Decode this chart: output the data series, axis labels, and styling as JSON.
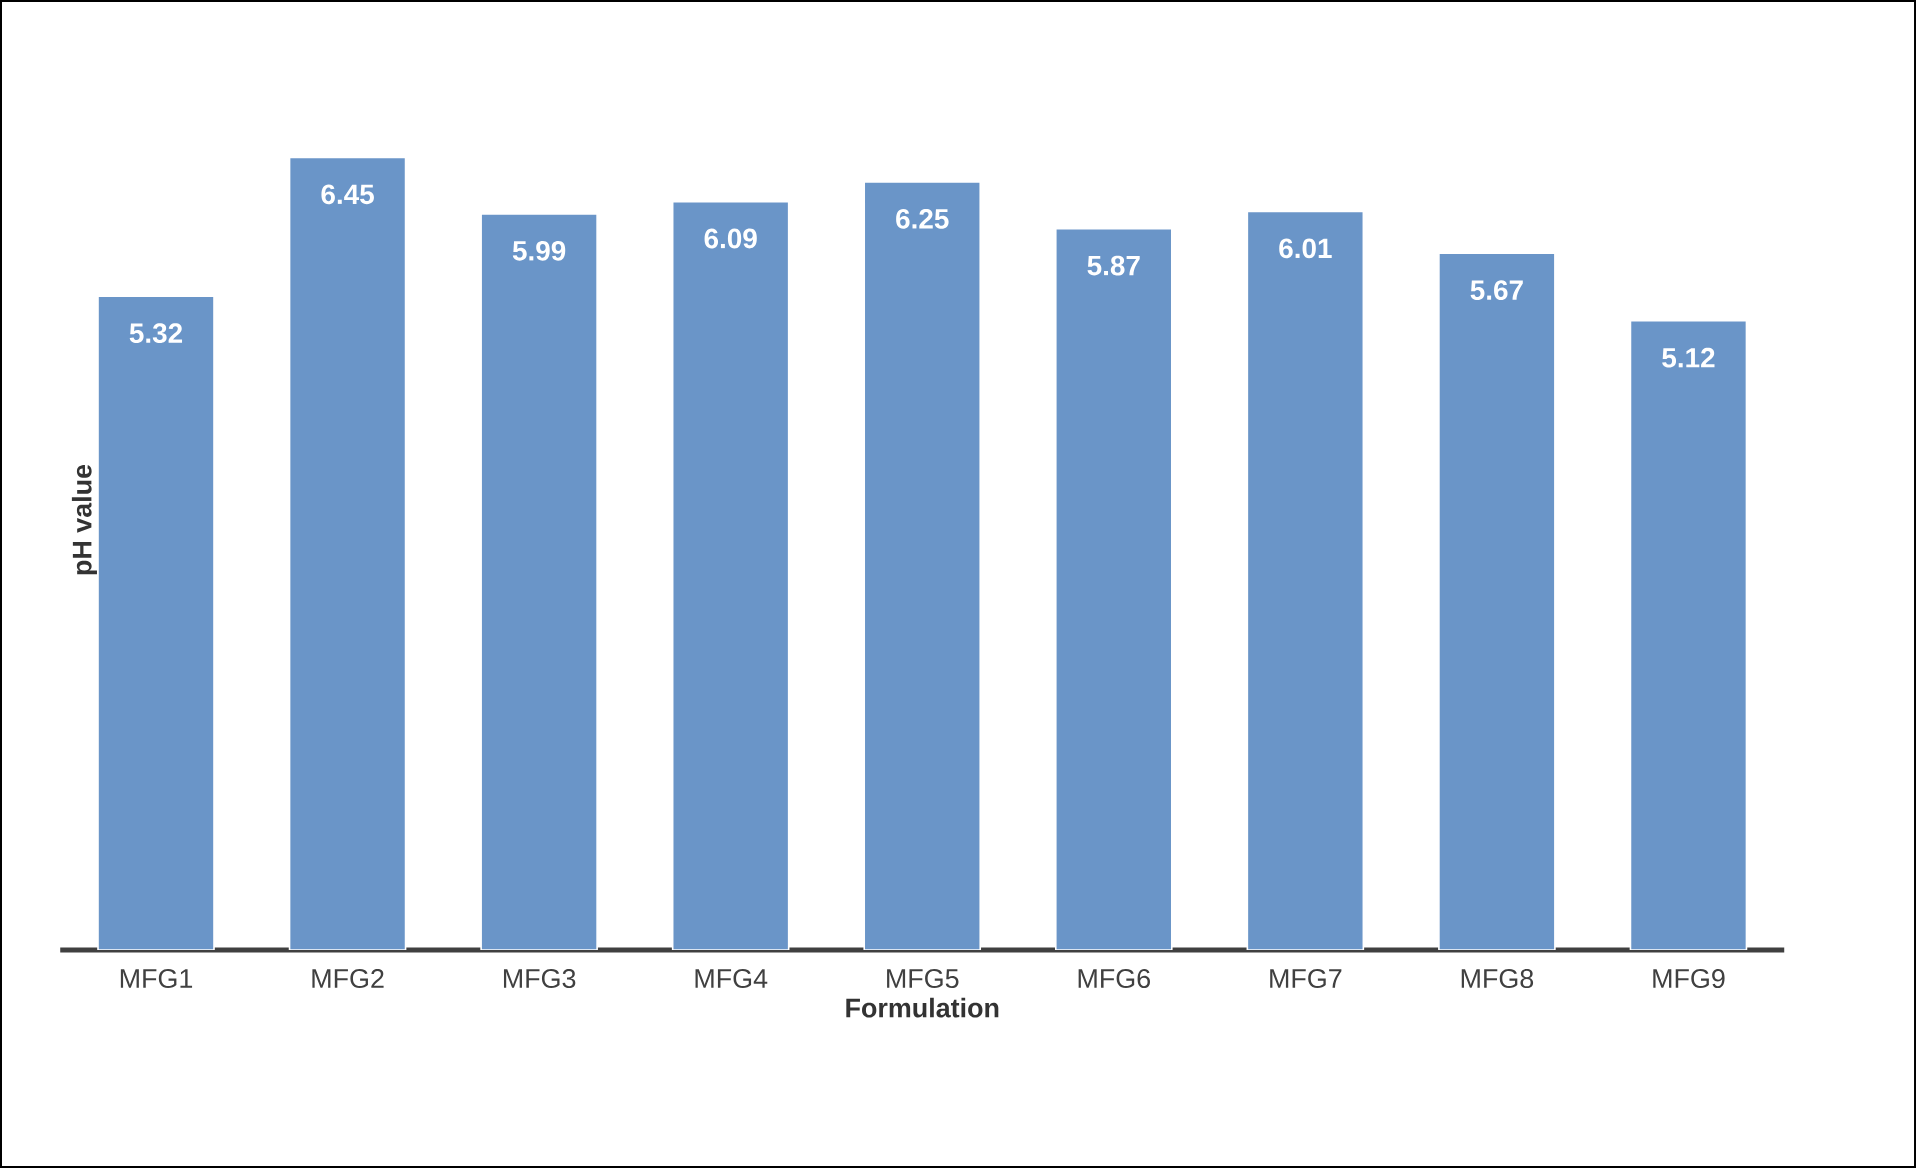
{
  "chart_data": {
    "type": "bar",
    "xlabel": "Formulation",
    "ylabel": "pH value",
    "categories": [
      "MFG1",
      "MFG2",
      "MFG3",
      "MFG4",
      "MFG5",
      "MFG6",
      "MFG7",
      "MFG8",
      "MFG9"
    ],
    "values": [
      5.32,
      6.45,
      5.99,
      6.09,
      6.25,
      5.87,
      6.01,
      5.67,
      5.12
    ],
    "color": "#6a95c8",
    "data_labels": true
  }
}
